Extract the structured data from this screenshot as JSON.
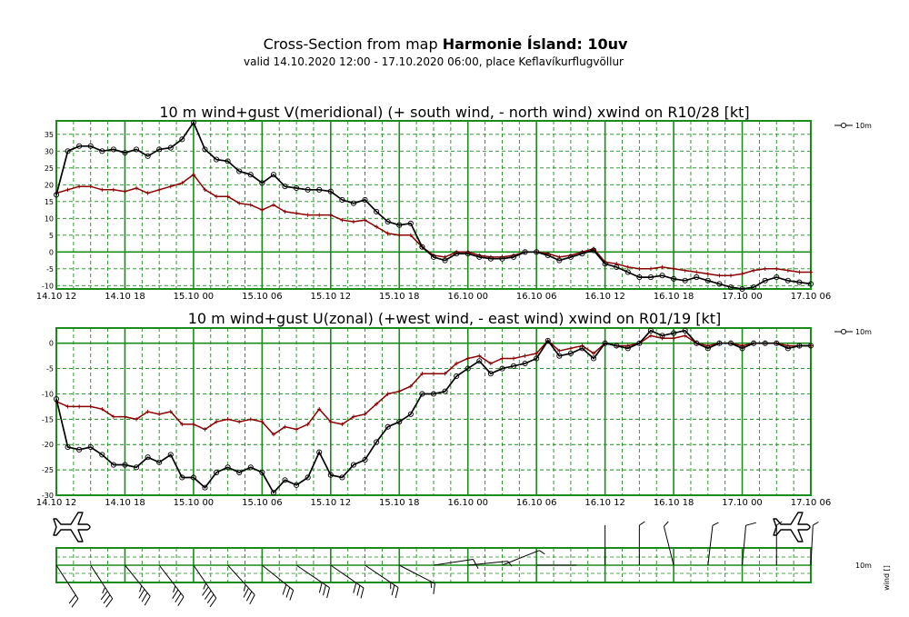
{
  "header": {
    "title_prefix": "Cross-Section from map ",
    "title_bold": "Harmonie Ísland: 10uv",
    "subtitle": "valid 14.10.2020 12:00 - 17.10.2020 06:00, place Keflavíkurflugvöllur"
  },
  "colors": {
    "grid": "#1a8c1a",
    "wind": "#000000",
    "gust": "#8b0000",
    "axis": "#000000"
  },
  "icons": {
    "left": "airplane-icon",
    "right": "airplane-icon"
  },
  "chart_data": [
    {
      "type": "line",
      "title": "10 m wind+gust V(meridional) (+ south wind, - north wind) xwind on R10/28 [kt]",
      "xlabel": "",
      "ylabel": "",
      "x_hours": [
        0,
        1,
        2,
        3,
        4,
        5,
        6,
        7,
        8,
        9,
        10,
        11,
        12,
        13,
        14,
        15,
        16,
        17,
        18,
        19,
        20,
        21,
        22,
        23,
        24,
        25,
        26,
        27,
        28,
        29,
        30,
        31,
        32,
        33,
        34,
        35,
        36,
        37,
        38,
        39,
        40,
        41,
        42,
        43,
        44,
        45,
        46,
        47,
        48,
        49,
        50,
        51,
        52,
        53,
        54,
        55,
        56,
        57,
        58,
        59,
        60,
        61,
        62,
        63,
        64,
        65,
        66
      ],
      "xticks": [
        "14.10 12",
        "14.10 18",
        "15.10 00",
        "15.10 06",
        "15.10 12",
        "15.10 18",
        "16.10 00",
        "16.10 06",
        "16.10 12",
        "16.10 18",
        "17.10 00",
        "17.10 06"
      ],
      "ylim": [
        -11,
        39
      ],
      "yticks": [
        -10,
        -5,
        0,
        5,
        10,
        15,
        20,
        25,
        30,
        35
      ],
      "legend": {
        "label": "10m",
        "position": "right"
      },
      "series": [
        {
          "name": "wind",
          "color": "#000000",
          "marker": "circle",
          "values": [
            17,
            30,
            31.5,
            31.5,
            30,
            30.5,
            29.5,
            30.5,
            28.5,
            30.5,
            31,
            33.5,
            38.5,
            30.5,
            27.5,
            27,
            24,
            23,
            20.5,
            23,
            19.5,
            19,
            18.5,
            18.5,
            18,
            15.5,
            14.5,
            15.5,
            12,
            9,
            8,
            8.5,
            1.5,
            -1.5,
            -2.5,
            -0.5,
            -0.5,
            -1.5,
            -2,
            -2,
            -1.5,
            0,
            0,
            -1,
            -2.5,
            -1.5,
            -0.5,
            0.5,
            -3.5,
            -4.5,
            -6,
            -7.5,
            -7.5,
            -7,
            -8,
            -8.5,
            -7.5,
            -8.5,
            -9.5,
            -10.5,
            -11,
            -10.5,
            -8.5,
            -7.5,
            -8.5,
            -9,
            -9.5
          ]
        },
        {
          "name": "gust",
          "color": "#8b0000",
          "marker": "plus",
          "values": [
            17.5,
            18.5,
            19.5,
            19.5,
            18.5,
            18.5,
            18,
            19,
            17.5,
            18.5,
            19.5,
            20.5,
            23,
            18.5,
            16.5,
            16.5,
            14.5,
            14,
            12.5,
            14,
            12,
            11.5,
            11,
            11,
            11,
            9.5,
            9,
            9.5,
            7.5,
            5.5,
            5,
            5,
            1.5,
            -1,
            -1.5,
            0,
            0,
            -1,
            -1.5,
            -1.5,
            -1,
            0,
            0,
            -0.5,
            -1.5,
            -1,
            0,
            1,
            -3,
            -3.5,
            -4.5,
            -5,
            -5,
            -4.5,
            -5,
            -5.5,
            -6,
            -6.5,
            -7,
            -7,
            -6.5,
            -5.5,
            -5,
            -5,
            -5.5,
            -6,
            -6
          ]
        }
      ]
    },
    {
      "type": "line",
      "title": "10 m wind+gust U(zonal) (+west wind, - east wind) xwind on R01/19 [kt]",
      "xlabel": "",
      "ylabel": "",
      "x_hours": [
        0,
        1,
        2,
        3,
        4,
        5,
        6,
        7,
        8,
        9,
        10,
        11,
        12,
        13,
        14,
        15,
        16,
        17,
        18,
        19,
        20,
        21,
        22,
        23,
        24,
        25,
        26,
        27,
        28,
        29,
        30,
        31,
        32,
        33,
        34,
        35,
        36,
        37,
        38,
        39,
        40,
        41,
        42,
        43,
        44,
        45,
        46,
        47,
        48,
        49,
        50,
        51,
        52,
        53,
        54,
        55,
        56,
        57,
        58,
        59,
        60,
        61,
        62,
        63,
        64,
        65,
        66
      ],
      "xticks": [
        "14.10 12",
        "14.10 18",
        "15.10 00",
        "15.10 06",
        "15.10 12",
        "15.10 18",
        "16.10 00",
        "16.10 06",
        "16.10 12",
        "16.10 18",
        "17.10 00",
        "17.10 06"
      ],
      "ylim": [
        -30,
        3
      ],
      "yticks": [
        -30,
        -25,
        -20,
        -15,
        -10,
        -5,
        0
      ],
      "legend": {
        "label": "10m",
        "position": "right"
      },
      "series": [
        {
          "name": "wind",
          "color": "#000000",
          "marker": "circle",
          "values": [
            -11,
            -20.5,
            -21,
            -20.5,
            -22,
            -24,
            -24,
            -24.5,
            -22.5,
            -23.5,
            -22,
            -26.5,
            -26.5,
            -28.5,
            -25.5,
            -24.5,
            -25.5,
            -24.5,
            -25.5,
            -29.5,
            -27,
            -28,
            -26.5,
            -21.5,
            -26,
            -26.5,
            -24,
            -23,
            -19.5,
            -16.5,
            -15.5,
            -14,
            -10,
            -10,
            -9.5,
            -6.5,
            -5,
            -3.5,
            -6,
            -5,
            -4.5,
            -4,
            -3,
            0.5,
            -2.5,
            -2,
            -1,
            -3,
            0,
            -0.5,
            -1,
            0,
            2.5,
            1.5,
            2,
            2.5,
            0,
            -1,
            0,
            0,
            -1,
            0,
            0,
            0,
            -1,
            -0.5,
            -0.5
          ]
        },
        {
          "name": "gust",
          "color": "#8b0000",
          "marker": "plus",
          "values": [
            -11.5,
            -12.5,
            -12.5,
            -12.5,
            -13,
            -14.5,
            -14.5,
            -15,
            -13.5,
            -14,
            -13.5,
            -16,
            -16,
            -17,
            -15.5,
            -15,
            -15.5,
            -15,
            -15.5,
            -18,
            -16.5,
            -17,
            -16,
            -13,
            -15.5,
            -16,
            -14.5,
            -14,
            -12,
            -10,
            -9.5,
            -8.5,
            -6,
            -6,
            -6,
            -4,
            -3,
            -2.5,
            -4,
            -3,
            -3,
            -2.5,
            -2,
            0.5,
            -1.5,
            -1,
            -0.5,
            -2,
            0,
            -0.5,
            -0.5,
            0,
            1.5,
            1,
            1,
            1.5,
            0,
            -0.5,
            0,
            0,
            -0.5,
            0,
            0,
            0,
            -0.5,
            -0.5,
            -0.5
          ]
        }
      ]
    },
    {
      "type": "other",
      "title": "wind barbs",
      "legend": {
        "label": "10m",
        "axis_label": "wind []"
      }
    }
  ]
}
